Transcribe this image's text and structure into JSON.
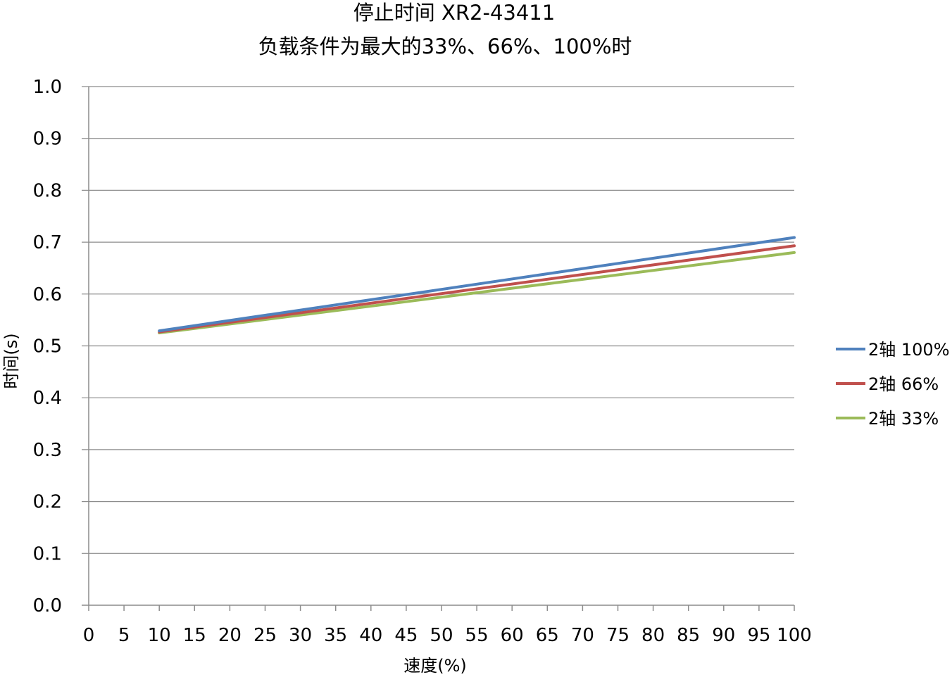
{
  "chart_data": {
    "type": "line",
    "title": "停止时间 XR2-43411",
    "subtitle": "负载条件为最大的33%、66%、100%时",
    "xlabel": "速度(%)",
    "ylabel": "时间(s)",
    "xlim": [
      0,
      100
    ],
    "ylim": [
      0,
      1.0
    ],
    "x_ticks": [
      "0",
      "5",
      "10",
      "15",
      "20",
      "25",
      "30",
      "35",
      "40",
      "45",
      "50",
      "55",
      "60",
      "65",
      "70",
      "75",
      "80",
      "85",
      "90",
      "95",
      "100"
    ],
    "y_ticks": [
      "0.0",
      "0.1",
      "0.2",
      "0.3",
      "0.4",
      "0.5",
      "0.6",
      "0.7",
      "0.8",
      "0.9",
      "1.0"
    ],
    "grid": true,
    "legend_position": "right",
    "x": [
      10,
      100
    ],
    "series": [
      {
        "name": "2轴  100%",
        "color": "#4f81bd",
        "values": [
          0.529,
          0.709
        ]
      },
      {
        "name": "2轴  66%",
        "color": "#c0504d",
        "values": [
          0.527,
          0.693
        ]
      },
      {
        "name": "2轴  33%",
        "color": "#9bbb59",
        "values": [
          0.525,
          0.68
        ]
      }
    ]
  }
}
